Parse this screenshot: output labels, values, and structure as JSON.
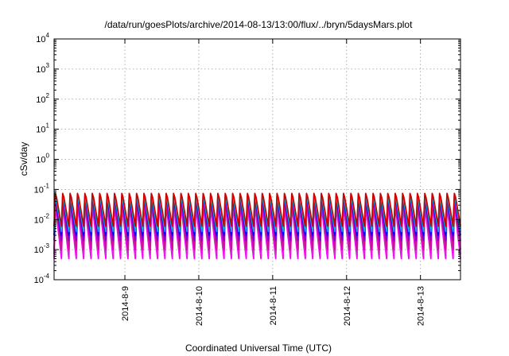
{
  "chart_data": {
    "type": "line",
    "title": "/data/run/goesPlots/archive/2014-08-13/13:00/flux/../bryn/5daysMars.plot",
    "xlabel": "Coordinated Universal Time (UTC)",
    "ylabel": "cSv/day",
    "xlim": [
      "2014-08-08T01:00",
      "2014-08-13T13:00"
    ],
    "ylim": [
      0.0001,
      10000
    ],
    "yscale": "log",
    "grid": true,
    "x_ticks": [
      "2014-8-9",
      "2014-8-10",
      "2014-8-11",
      "2014-8-12",
      "2014-8-13"
    ],
    "y_ticks": [
      {
        "base": "10",
        "exp": "-4"
      },
      {
        "base": "10",
        "exp": "-3"
      },
      {
        "base": "10",
        "exp": "-2"
      },
      {
        "base": "10",
        "exp": "-1"
      },
      {
        "base": "10",
        "exp": "0"
      },
      {
        "base": "10",
        "exp": "1"
      },
      {
        "base": "10",
        "exp": "2"
      },
      {
        "base": "10",
        "exp": "3"
      },
      {
        "base": "10",
        "exp": "4"
      }
    ],
    "pattern": {
      "shape": "sawtooth",
      "cycles_per_day": 10,
      "start": "2014-08-08T01:00"
    },
    "series": [
      {
        "color": "#ff00ff",
        "peak": 0.03,
        "trough": 0.0005
      },
      {
        "color": "#dd22dd",
        "peak": 0.035,
        "trough": 0.0007
      },
      {
        "color": "#cc1199",
        "peak": 0.04,
        "trough": 0.001
      },
      {
        "color": "#8800cc",
        "peak": 0.05,
        "trough": 0.002
      },
      {
        "color": "#0000ff",
        "peak": 0.06,
        "trough": 0.003
      },
      {
        "color": "#1e90ff",
        "peak": 0.07,
        "trough": 0.004
      },
      {
        "color": "#00c0c0",
        "peak": 0.07,
        "trough": 0.005
      },
      {
        "color": "#d00000",
        "peak": 0.09,
        "trough": 0.006
      }
    ]
  }
}
